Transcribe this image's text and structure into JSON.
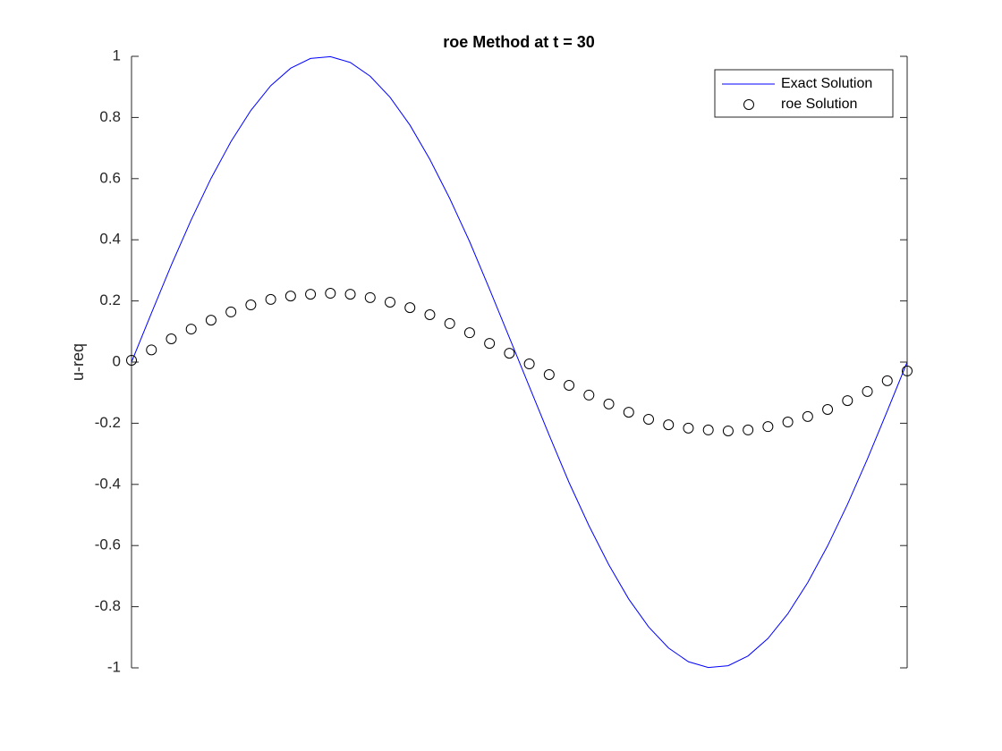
{
  "chart_data": {
    "type": "line",
    "title": "roe Method at t = 30",
    "y_label": "u-req",
    "x": [
      0,
      1,
      2,
      3,
      4,
      5,
      6,
      7,
      8,
      9,
      10,
      11,
      12,
      13,
      14,
      15,
      16,
      17,
      18,
      19,
      20,
      21,
      22,
      23,
      24,
      25,
      26,
      27,
      28,
      29,
      30,
      31,
      32,
      33,
      34,
      35,
      36,
      37,
      38,
      39
    ],
    "xlim": [
      0,
      39
    ],
    "ylim": [
      -1,
      1
    ],
    "yticks": [
      -1,
      -0.8,
      -0.6,
      -0.4,
      -0.2,
      0,
      0.2,
      0.4,
      0.6,
      0.8,
      1
    ],
    "legend": "top-right",
    "series": [
      {
        "name": "Exact Solution",
        "color": "#0000ff",
        "style": "line",
        "values": [
          0,
          0.16,
          0.317,
          0.465,
          0.601,
          0.721,
          0.823,
          0.904,
          0.961,
          0.993,
          0.999,
          0.98,
          0.935,
          0.866,
          0.775,
          0.663,
          0.535,
          0.394,
          0.239,
          0.08,
          -0.08,
          -0.239,
          -0.394,
          -0.535,
          -0.663,
          -0.775,
          -0.866,
          -0.935,
          -0.98,
          -0.999,
          -0.993,
          -0.961,
          -0.904,
          -0.823,
          -0.721,
          -0.601,
          -0.465,
          -0.317,
          -0.16,
          0
        ]
      },
      {
        "name": "roe Solution",
        "color": "#000000",
        "style": "marker",
        "values": [
          0.006,
          0.04,
          0.076,
          0.108,
          0.137,
          0.164,
          0.187,
          0.205,
          0.216,
          0.222,
          0.225,
          0.222,
          0.211,
          0.196,
          0.178,
          0.155,
          0.126,
          0.096,
          0.061,
          0.029,
          -0.006,
          -0.041,
          -0.076,
          -0.108,
          -0.137,
          -0.164,
          -0.187,
          -0.205,
          -0.216,
          -0.222,
          -0.225,
          -0.222,
          -0.211,
          -0.196,
          -0.178,
          -0.155,
          -0.126,
          -0.096,
          -0.061,
          -0.029
        ]
      }
    ]
  }
}
